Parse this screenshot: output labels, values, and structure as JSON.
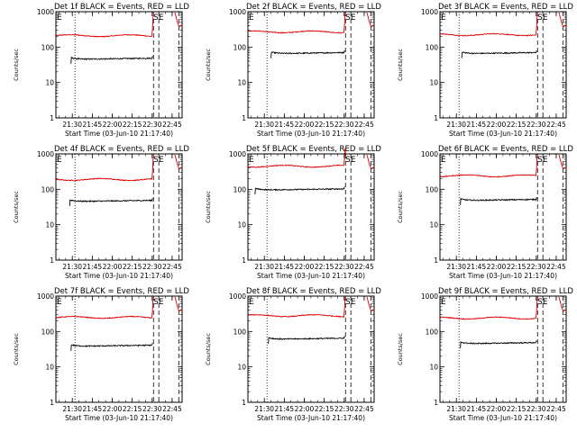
{
  "chart_data": {
    "type": "line",
    "ylabel": "Counts/sec",
    "xlabel": "Start Time (03-Jun-10 21:17:40)",
    "yscale": "log",
    "ylim": [
      1,
      1000
    ],
    "yticks": [
      {
        "value": 1,
        "label": "1"
      },
      {
        "value": 10,
        "label": "10"
      },
      {
        "value": 100,
        "label": "100"
      },
      {
        "value": 1000,
        "label": "1000"
      }
    ],
    "xlim": [
      "21:17:40",
      "22:52:30"
    ],
    "xticks": [
      {
        "time": "21:30",
        "label": "21:30"
      },
      {
        "time": "21:45",
        "label": "21:45"
      },
      {
        "time": "22:00",
        "label": "22:00"
      },
      {
        "time": "22:15",
        "label": "22:15"
      },
      {
        "time": "22:30",
        "label": "22:30"
      },
      {
        "time": "22:45",
        "label": "22:45"
      }
    ],
    "markers": [
      {
        "time": "21:32",
        "style": "dotted",
        "label": ""
      },
      {
        "time": "22:31",
        "style": "dashed",
        "label": ""
      },
      {
        "time": "22:35",
        "style": "dashed",
        "label": "SE"
      },
      {
        "time": "22:50",
        "style": "dashed",
        "label": ""
      }
    ],
    "corner_label": "E",
    "series_colors": {
      "events": "#000000",
      "lld": "#dd0000"
    },
    "panels": [
      {
        "title": "Det 1f BLACK = Events, RED = LLD",
        "events_level": 45,
        "lld_level": 210,
        "events_start": "21:29"
      },
      {
        "title": "Det 2f BLACK = Events, RED = LLD",
        "events_level": 65,
        "lld_level": 270,
        "events_start": "21:35"
      },
      {
        "title": "Det 3f BLACK = Events, RED = LLD",
        "events_level": 65,
        "lld_level": 225,
        "events_start": "21:34"
      },
      {
        "title": "Det 4f BLACK = Events, RED = LLD",
        "events_level": 45,
        "lld_level": 190,
        "events_start": "21:28"
      },
      {
        "title": "Det 5f BLACK = Events, RED = LLD",
        "events_level": 95,
        "lld_level": 450,
        "events_start": "21:23"
      },
      {
        "title": "Det 6f BLACK = Events, RED = LLD",
        "events_level": 48,
        "lld_level": 240,
        "events_start": "21:33"
      },
      {
        "title": "Det 7f BLACK = Events, RED = LLD",
        "events_level": 38,
        "lld_level": 250,
        "events_start": "21:29"
      },
      {
        "title": "Det 8f BLACK = Events, RED = LLD",
        "events_level": 60,
        "lld_level": 280,
        "events_start": "21:33"
      },
      {
        "title": "Det 9f BLACK = Events, RED = LLD",
        "events_level": 45,
        "lld_level": 240,
        "events_start": "21:33"
      }
    ]
  }
}
